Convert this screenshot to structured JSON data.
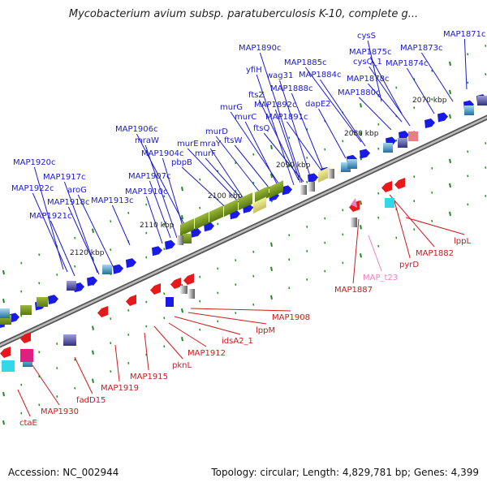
{
  "title": "Mycobacterium avium subsp. paratuberculosis K-10, complete g...",
  "footer": {
    "accession": "Accession: NC_002944",
    "summary": "Topology: circular; Length: 4,829,781 bp; Genes: 4,399"
  },
  "colors": {
    "forward_label": "#1a1acc",
    "reverse_label": "#cc1a1a",
    "pseudo_label": "#ee7fbf",
    "tick": "#228822",
    "backbone": "#888888"
  },
  "kbp_ticks": [
    "2070 kbp",
    "2080 kbp",
    "2090 kbp",
    "2100 kbp",
    "2110 kbp",
    "2120 kbp"
  ],
  "forward_genes": [
    "MAP1871c",
    "cysS",
    "MAP1873c",
    "MAP1875c",
    "cysQ_1",
    "MAP1874c",
    "MAP1890c",
    "MAP1885c",
    "MAP1878c",
    "yfiH",
    "wag31",
    "MAP1884c",
    "MAP1888c",
    "MAP1880c",
    "ftsZ",
    "MAP1892c",
    "dapE2",
    "murG",
    "MAP1891c",
    "murC",
    "ftsQ",
    "MAP1906c",
    "murD",
    "mraW",
    "murE",
    "mraY",
    "ftsW",
    "MAP1904c",
    "murF",
    "pbpB",
    "MAP1920c",
    "MAP1917c",
    "MAP1907c",
    "aroG",
    "MAP1922c",
    "MAP1910c",
    "MAP1918c",
    "MAP1913c",
    "MAP1921c"
  ],
  "reverse_genes": [
    "lppL",
    "MAP1882",
    "pyrD",
    "MAP1887",
    "MAP1908",
    "lppM",
    "idsA2_1",
    "MAP1912",
    "pknL",
    "MAP1915",
    "MAP1919",
    "fadD15",
    "MAP1930",
    "ctaE"
  ],
  "pseudo_genes": [
    "MAP_t23"
  ]
}
